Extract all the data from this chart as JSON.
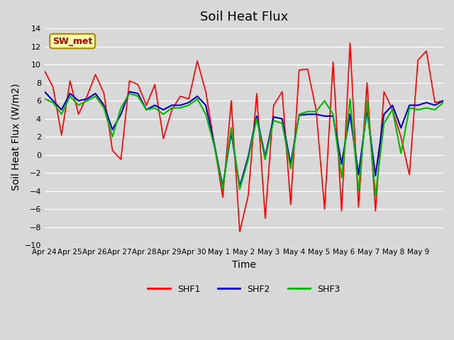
{
  "title": "Soil Heat Flux",
  "xlabel": "Time",
  "ylabel": "Soil Heat Flux (W/m2)",
  "ylim": [
    -10,
    14
  ],
  "yticks": [
    -10,
    -8,
    -6,
    -4,
    -2,
    0,
    2,
    4,
    6,
    8,
    10,
    12,
    14
  ],
  "colors": {
    "SHF1": "#ff0000",
    "SHF2": "#0000cc",
    "SHF3": "#00bb00"
  },
  "bg_color": "#d8d8d8",
  "annotation_text": "SW_met",
  "annotation_bg": "#ffffaa",
  "annotation_fg": "#aa0000",
  "annotation_border": "#aa8800",
  "x_tick_labels": [
    "Apr 24",
    "Apr 25",
    "Apr 26",
    "Apr 27",
    "Apr 28",
    "Apr 29",
    "Apr 30",
    "May 1",
    "May 2",
    "May 3",
    "May 4",
    "May 5",
    "May 6",
    "May 7",
    "May 8",
    "May 9"
  ],
  "shf1": [
    9.3,
    7.5,
    2.2,
    8.2,
    4.5,
    6.5,
    8.9,
    6.8,
    0.5,
    -0.5,
    8.2,
    7.8,
    5.5,
    7.8,
    1.8,
    5.0,
    6.5,
    6.2,
    10.4,
    7.0,
    1.2,
    -4.7,
    6.0,
    -8.5,
    -4.5,
    6.8,
    -7.0,
    5.5,
    7.0,
    -5.5,
    9.4,
    9.5,
    5.0,
    -6.0,
    10.3,
    -6.2,
    12.4,
    -5.8,
    8.0,
    -6.2,
    7.0,
    5.0,
    2.0,
    -2.2,
    10.5,
    11.5,
    5.8,
    6.0
  ],
  "shf2": [
    7.0,
    6.0,
    5.0,
    6.8,
    6.0,
    6.2,
    6.8,
    5.5,
    2.8,
    4.5,
    7.0,
    6.8,
    5.0,
    5.5,
    5.0,
    5.5,
    5.5,
    5.8,
    6.5,
    5.5,
    1.2,
    -3.5,
    2.5,
    -3.5,
    -0.2,
    4.3,
    -0.2,
    4.2,
    4.0,
    -1.0,
    4.4,
    4.5,
    4.5,
    4.3,
    4.3,
    -1.0,
    4.5,
    -2.2,
    5.0,
    -2.3,
    4.5,
    5.5,
    3.0,
    5.5,
    5.5,
    5.8,
    5.5,
    6.0
  ],
  "shf3": [
    6.2,
    5.8,
    4.5,
    6.5,
    5.5,
    6.0,
    6.5,
    5.2,
    2.0,
    5.2,
    6.8,
    6.5,
    5.0,
    5.2,
    4.5,
    5.2,
    5.2,
    5.5,
    6.2,
    4.5,
    1.0,
    -3.8,
    3.0,
    -3.8,
    -0.5,
    4.0,
    -0.5,
    3.8,
    3.5,
    -1.5,
    4.5,
    4.8,
    4.8,
    6.0,
    4.5,
    -2.5,
    6.2,
    -4.0,
    6.0,
    -4.5,
    3.5,
    5.0,
    0.2,
    5.2,
    5.0,
    5.2,
    5.0,
    5.8
  ]
}
